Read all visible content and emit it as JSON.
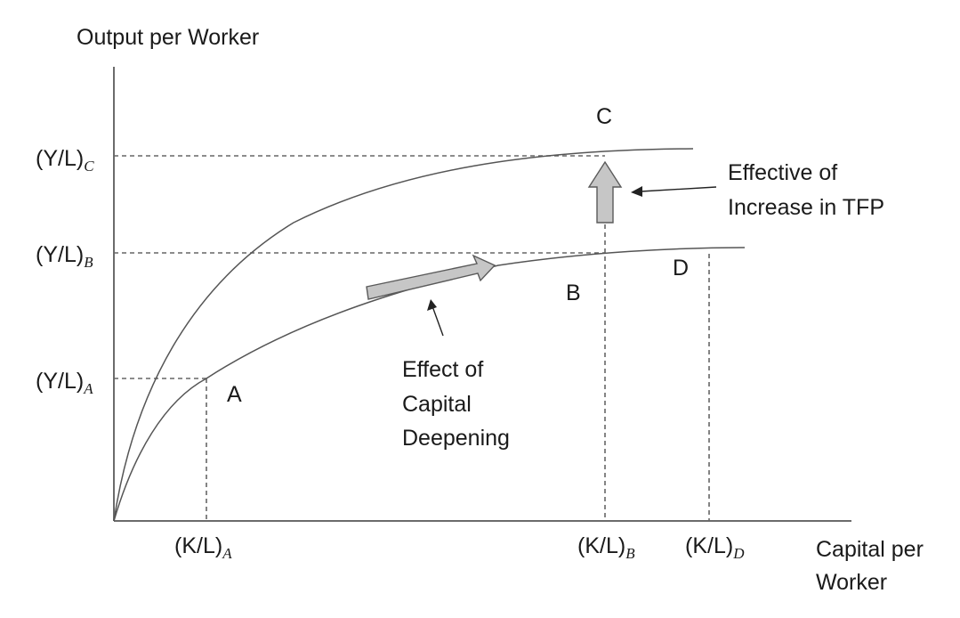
{
  "axes": {
    "y_label": "Output per Worker",
    "x_label_line1": "Capital per",
    "x_label_line2": "Worker"
  },
  "y_ticks": {
    "c": {
      "main": "(Y/L)",
      "sub": "C"
    },
    "b": {
      "main": "(Y/L)",
      "sub": "B"
    },
    "a": {
      "main": "(Y/L)",
      "sub": "A"
    }
  },
  "x_ticks": {
    "a": {
      "main": "(K/L)",
      "sub": "A"
    },
    "b": {
      "main": "(K/L)",
      "sub": "B"
    },
    "d": {
      "main": "(K/L)",
      "sub": "D"
    }
  },
  "points": {
    "a": "A",
    "b": "B",
    "c": "C",
    "d": "D"
  },
  "annotations": {
    "tfp_line1": "Effective of",
    "tfp_line2": "Increase in TFP",
    "deepening_line1": "Effect of",
    "deepening_line2": "Capital",
    "deepening_line3": "Deepening"
  }
}
